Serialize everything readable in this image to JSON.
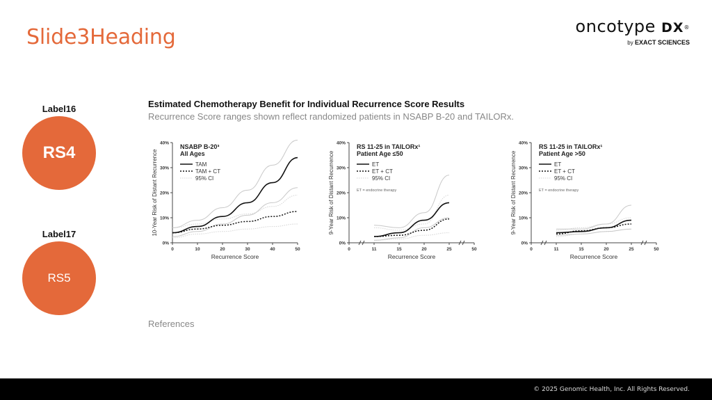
{
  "slide": {
    "heading": "Slide3Heading",
    "title": "Estimated Chemotherapy Benefit for Individual Recurrence Score Results",
    "subtitle": "Recurrence Score ranges shown reflect randomized patients in NSABP B-20 and TAILORx.",
    "references": "References",
    "footer": "© 2025 Genomic Health, Inc. All Rights Reserved."
  },
  "logo": {
    "main": "oncotype",
    "dx": "DX",
    "reg": "®",
    "by": "by",
    "company": "EXACT SCIENCES"
  },
  "badges": [
    {
      "label": "Label16",
      "text": "RS4"
    },
    {
      "label": "Label17",
      "text": "RS5"
    }
  ],
  "colors": {
    "accent": "#e4693a",
    "footer": "#000000"
  },
  "chart_data": [
    {
      "type": "line",
      "title": "NSABP B-20³",
      "subtitle": "All Ages",
      "xlabel": "Recurrence Score",
      "ylabel": "10-Year Risk of Distant Recurrence",
      "xlim": [
        0,
        50
      ],
      "ylim": [
        0,
        40
      ],
      "xticks": [
        "0",
        "10",
        "20",
        "30",
        "40",
        "50"
      ],
      "yticks": [
        "0%",
        "10%",
        "20%",
        "30%",
        "40%"
      ],
      "legend": [
        "TAM",
        "TAM + CT",
        "95% CI"
      ],
      "note": "",
      "series": [
        {
          "name": "TAM",
          "x": [
            0,
            10,
            20,
            30,
            40,
            50
          ],
          "values": [
            4,
            6.5,
            10.5,
            16,
            24,
            34
          ]
        },
        {
          "name": "TAM + CT",
          "x": [
            0,
            10,
            20,
            30,
            40,
            50
          ],
          "values": [
            4,
            5.5,
            7,
            8.5,
            10.5,
            12.5
          ]
        },
        {
          "name": "95% CI",
          "x": [
            0,
            10,
            20,
            30,
            40,
            50
          ],
          "values": [
            6,
            9,
            14,
            21,
            31,
            41
          ]
        },
        {
          "name": "95% CI",
          "x": [
            0,
            10,
            20,
            30,
            40,
            50
          ],
          "values": [
            2.5,
            4.5,
            7.5,
            11,
            16,
            22
          ]
        },
        {
          "name": "95% CI",
          "x": [
            0,
            10,
            20,
            30,
            40,
            50
          ],
          "values": [
            6,
            7.5,
            9.5,
            11.5,
            14.5,
            19
          ]
        },
        {
          "name": "95% CI",
          "x": [
            0,
            10,
            20,
            30,
            40,
            50
          ],
          "values": [
            2,
            3.5,
            4.5,
            5.5,
            6.5,
            7.5
          ]
        }
      ]
    },
    {
      "type": "line",
      "title": "RS 11-25 in TAILORx¹",
      "subtitle": "Patient Age ≤50",
      "xlabel": "Recurrence Score",
      "ylabel": "9-Year Risk of Distant Recurrence",
      "xlim": [
        0,
        50
      ],
      "ylim": [
        0,
        40
      ],
      "xticks": [
        "0",
        "11",
        "15",
        "20",
        "25",
        "50"
      ],
      "yticks": [
        "0%",
        "10%",
        "20%",
        "30%",
        "40%"
      ],
      "legend": [
        "ET",
        "ET + CT",
        "95% CI"
      ],
      "note": "ET = endocrine therapy",
      "series": [
        {
          "name": "ET",
          "x": [
            11,
            15,
            20,
            25
          ],
          "values": [
            2.5,
            4,
            9,
            16
          ]
        },
        {
          "name": "ET + CT",
          "x": [
            11,
            15,
            20,
            25
          ],
          "values": [
            2.5,
            3,
            5,
            9.5
          ]
        },
        {
          "name": "95% CI",
          "x": [
            11,
            15,
            20,
            25
          ],
          "values": [
            7,
            6,
            12,
            27
          ]
        },
        {
          "name": "95% CI",
          "x": [
            11,
            15,
            20,
            25
          ],
          "values": [
            1,
            2,
            6,
            10
          ]
        },
        {
          "name": "95% CI",
          "x": [
            11,
            15,
            20,
            25
          ],
          "values": [
            6,
            5,
            7.5,
            19
          ]
        },
        {
          "name": "95% CI",
          "x": [
            11,
            15,
            20,
            25
          ],
          "values": [
            1,
            1.5,
            3,
            4
          ]
        }
      ]
    },
    {
      "type": "line",
      "title": "RS 11-25 in TAILORx¹",
      "subtitle": "Patient Age >50",
      "xlabel": "Recurrence Score",
      "ylabel": "9-Year Risk of Distant Recurrence",
      "xlim": [
        0,
        50
      ],
      "ylim": [
        0,
        40
      ],
      "xticks": [
        "0",
        "11",
        "15",
        "20",
        "25",
        "50"
      ],
      "yticks": [
        "0%",
        "10%",
        "20%",
        "30%",
        "40%"
      ],
      "legend": [
        "ET",
        "ET + CT",
        "95% CI"
      ],
      "note": "ET = endocrine therapy",
      "series": [
        {
          "name": "ET",
          "x": [
            11,
            15,
            20,
            25
          ],
          "values": [
            4,
            4.5,
            6,
            9
          ]
        },
        {
          "name": "ET + CT",
          "x": [
            11,
            15,
            20,
            25
          ],
          "values": [
            3.5,
            4.8,
            6,
            7.5
          ]
        },
        {
          "name": "95% CI",
          "x": [
            11,
            15,
            20,
            25
          ],
          "values": [
            5.5,
            5.5,
            7.5,
            15
          ]
        },
        {
          "name": "95% CI",
          "x": [
            11,
            15,
            20,
            25
          ],
          "values": [
            3,
            3.5,
            4.5,
            5.5
          ]
        },
        {
          "name": "95% CI",
          "x": [
            11,
            15,
            20,
            25
          ],
          "values": [
            5,
            6,
            7.5,
            10
          ]
        },
        {
          "name": "95% CI",
          "x": [
            11,
            15,
            20,
            25
          ],
          "values": [
            2.5,
            3.5,
            4.5,
            5.5
          ]
        }
      ]
    }
  ]
}
